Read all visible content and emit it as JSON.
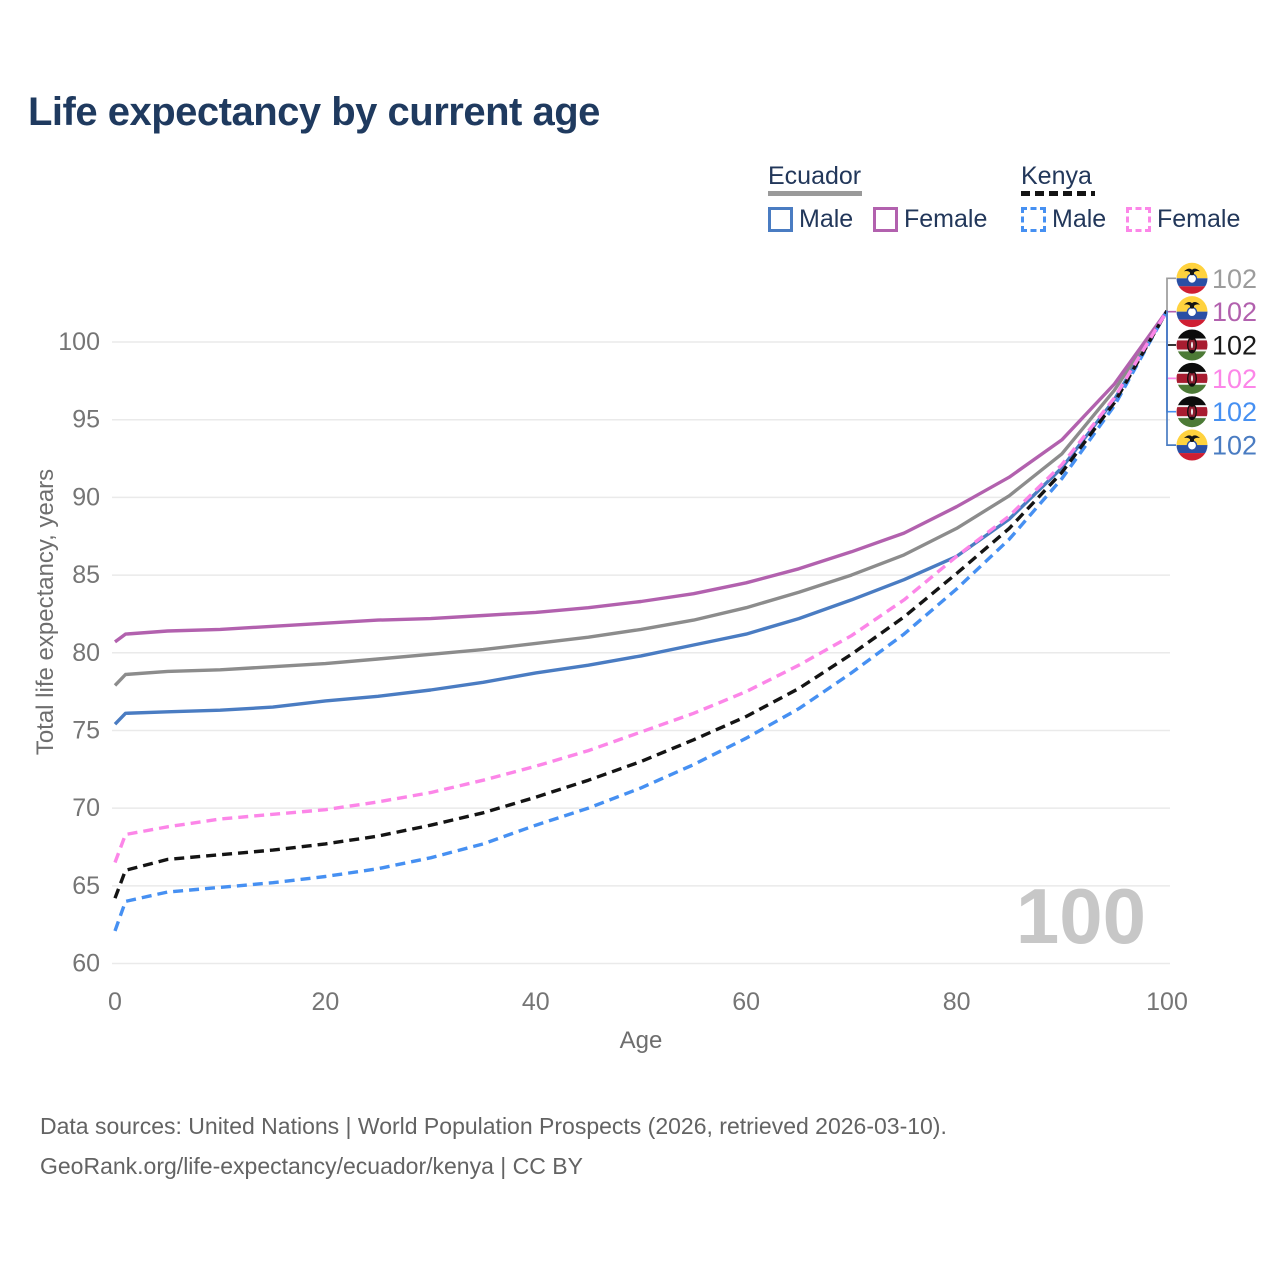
{
  "header": {
    "title": "Life expectancy by current age"
  },
  "legend": {
    "groups": [
      {
        "id": "ecuador",
        "label": "Ecuador",
        "line_style": "solid",
        "title_line_color": "#9a9a9a",
        "items": [
          {
            "id": "ecuador-male",
            "label": "Male",
            "color": "#4a7cc2",
            "box_style": "solid"
          },
          {
            "id": "ecuador-female",
            "label": "Female",
            "color": "#b261ae",
            "box_style": "solid"
          }
        ]
      },
      {
        "id": "kenya",
        "label": "Kenya",
        "line_style": "dashed",
        "title_line_color": "#141414",
        "items": [
          {
            "id": "kenya-male",
            "label": "Male",
            "color": "#4690f2",
            "box_style": "dashed"
          },
          {
            "id": "kenya-female",
            "label": "Female",
            "color": "#fc86e8",
            "box_style": "dashed"
          }
        ]
      }
    ]
  },
  "chart_data": {
    "type": "line",
    "title": "Life expectancy by current age",
    "xlabel": "Age",
    "ylabel": "Total life expectancy, years",
    "x_ticks": [
      0,
      20,
      40,
      60,
      80,
      100
    ],
    "y_ticks": [
      60,
      65,
      70,
      75,
      80,
      85,
      90,
      95,
      100
    ],
    "xlim": [
      0,
      100
    ],
    "ylim": [
      58.5,
      103.5
    ],
    "grid": "horizontal-only",
    "legend_position": "top-right",
    "watermark": "100",
    "ages": [
      0,
      1,
      5,
      10,
      15,
      20,
      25,
      30,
      35,
      40,
      45,
      50,
      55,
      60,
      65,
      70,
      75,
      80,
      85,
      90,
      95,
      100
    ],
    "series": [
      {
        "id": "ecuador-male",
        "name": "Ecuador — Male",
        "country": "Ecuador",
        "sex": "Male",
        "style": "solid",
        "color": "#4a7cc2",
        "values": [
          75.4,
          76.1,
          76.2,
          76.3,
          76.5,
          76.9,
          77.2,
          77.6,
          78.1,
          78.7,
          79.2,
          79.8,
          80.5,
          81.2,
          82.2,
          83.4,
          84.7,
          86.2,
          88.6,
          91.9,
          96.3,
          102
        ]
      },
      {
        "id": "ecuador-both",
        "name": "Ecuador — Both sexes",
        "country": "Ecuador",
        "sex": "Both",
        "style": "solid",
        "color": "#8c8c8c",
        "values": [
          77.9,
          78.6,
          78.8,
          78.9,
          79.1,
          79.3,
          79.6,
          79.9,
          80.2,
          80.6,
          81.0,
          81.5,
          82.1,
          82.9,
          83.9,
          85.0,
          86.3,
          88.0,
          90.1,
          92.8,
          96.9,
          102
        ]
      },
      {
        "id": "ecuador-female",
        "name": "Ecuador — Female",
        "country": "Ecuador",
        "sex": "Female",
        "style": "solid",
        "color": "#b261ae",
        "values": [
          80.7,
          81.2,
          81.4,
          81.5,
          81.7,
          81.9,
          82.1,
          82.2,
          82.4,
          82.6,
          82.9,
          83.3,
          83.8,
          84.5,
          85.4,
          86.5,
          87.7,
          89.4,
          91.3,
          93.7,
          97.3,
          102
        ]
      },
      {
        "id": "kenya-male",
        "name": "Kenya — Male",
        "country": "Kenya",
        "sex": "Male",
        "style": "dashed",
        "color": "#4690f2",
        "values": [
          62.1,
          64.0,
          64.6,
          64.9,
          65.2,
          65.6,
          66.1,
          66.8,
          67.7,
          68.9,
          70.0,
          71.3,
          72.8,
          74.5,
          76.4,
          78.7,
          81.2,
          84.1,
          87.3,
          91.2,
          95.9,
          102
        ]
      },
      {
        "id": "kenya-both",
        "name": "Kenya — Both sexes",
        "country": "Kenya",
        "sex": "Both",
        "style": "dashed",
        "color": "#141414",
        "values": [
          64.2,
          66.0,
          66.7,
          67.0,
          67.3,
          67.7,
          68.2,
          68.9,
          69.7,
          70.7,
          71.8,
          73.0,
          74.4,
          75.9,
          77.7,
          79.9,
          82.3,
          85.1,
          88.0,
          91.6,
          96.1,
          102
        ]
      },
      {
        "id": "kenya-female",
        "name": "Kenya — Female",
        "country": "Kenya",
        "sex": "Female",
        "style": "dashed",
        "color": "#fc86e8",
        "values": [
          66.5,
          68.3,
          68.8,
          69.3,
          69.6,
          69.9,
          70.4,
          71.0,
          71.8,
          72.7,
          73.7,
          74.9,
          76.1,
          77.5,
          79.2,
          81.1,
          83.4,
          86.2,
          88.8,
          92.1,
          96.4,
          102
        ]
      }
    ],
    "end_labels": [
      {
        "flag": "ecuador",
        "series": "Ecuador — Both sexes",
        "value": 102,
        "color": "#9c9c9c"
      },
      {
        "flag": "ecuador",
        "series": "Ecuador — Female",
        "value": 102,
        "color": "#b261ae"
      },
      {
        "flag": "kenya",
        "series": "Kenya — Both sexes",
        "value": 102,
        "color": "#1a1a1a"
      },
      {
        "flag": "kenya",
        "series": "Kenya — Female",
        "value": 102,
        "color": "#fc86e8"
      },
      {
        "flag": "kenya",
        "series": "Kenya — Male",
        "value": 102,
        "color": "#4690f2"
      },
      {
        "flag": "ecuador",
        "series": "Ecuador — Male",
        "value": 102,
        "color": "#4a7cc2"
      }
    ]
  },
  "footer": {
    "line1": "Data sources: United Nations | World Population Prospects (2026, retrieved 2026-03-10).",
    "line2": "GeoRank.org/life-expectancy/ecuador/kenya | CC BY"
  }
}
